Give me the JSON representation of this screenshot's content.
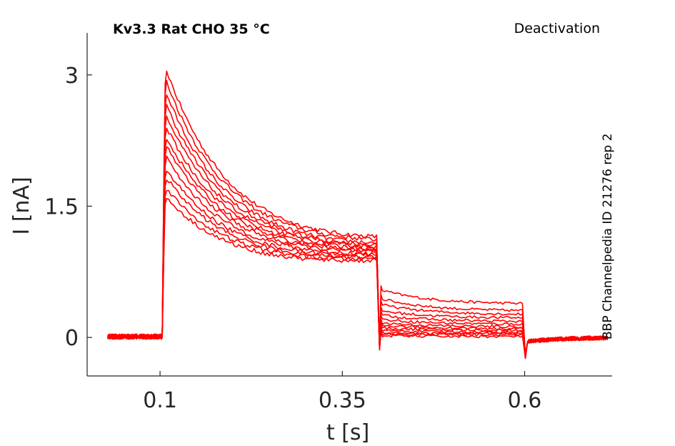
{
  "chart_data": {
    "type": "line",
    "title": "Kv3.3  Rat  CHO  35 °C",
    "protocol_label": "Deactivation",
    "side_label": "BBP Channelpedia ID 21276 rep 2",
    "xlabel": "t [s]",
    "ylabel": "I [nA]",
    "xlim": [
      0.0,
      0.72
    ],
    "ylim": [
      -0.44,
      3.48
    ],
    "xticks": [
      0.1,
      0.35,
      0.6
    ],
    "xtick_labels": [
      "0.1",
      "0.35",
      "0.6"
    ],
    "yticks": [
      0,
      1.5,
      3
    ],
    "ytick_labels": [
      "0",
      "1.5",
      "3"
    ],
    "grid": false,
    "color": "#ff0000",
    "x_start": 0.028,
    "pulse_on": 0.103,
    "pulse_off": 0.4,
    "tail_off": 0.6,
    "x_end": 0.717,
    "series": [
      {
        "peak": 3.05,
        "end_step": 1.15,
        "tail": 0.55,
        "tail_end": 0.38
      },
      {
        "peak": 2.92,
        "end_step": 1.12,
        "tail": 0.45,
        "tail_end": 0.3
      },
      {
        "peak": 2.78,
        "end_step": 1.08,
        "tail": 0.38,
        "tail_end": 0.26
      },
      {
        "peak": 2.65,
        "end_step": 1.06,
        "tail": 0.31,
        "tail_end": 0.22
      },
      {
        "peak": 2.52,
        "end_step": 1.04,
        "tail": 0.26,
        "tail_end": 0.18
      },
      {
        "peak": 2.4,
        "end_step": 1.02,
        "tail": 0.21,
        "tail_end": 0.15
      },
      {
        "peak": 2.28,
        "end_step": 1.0,
        "tail": 0.17,
        "tail_end": 0.12
      },
      {
        "peak": 2.18,
        "end_step": 0.98,
        "tail": 0.14,
        "tail_end": 0.1
      },
      {
        "peak": 2.05,
        "end_step": 0.96,
        "tail": 0.11,
        "tail_end": 0.08
      },
      {
        "peak": 1.92,
        "end_step": 0.94,
        "tail": 0.08,
        "tail_end": 0.06
      },
      {
        "peak": 1.82,
        "end_step": 0.92,
        "tail": 0.06,
        "tail_end": 0.04
      },
      {
        "peak": 1.7,
        "end_step": 0.9,
        "tail": 0.04,
        "tail_end": 0.03
      },
      {
        "peak": 1.6,
        "end_step": 0.88,
        "tail": 0.02,
        "tail_end": 0.01
      }
    ]
  }
}
